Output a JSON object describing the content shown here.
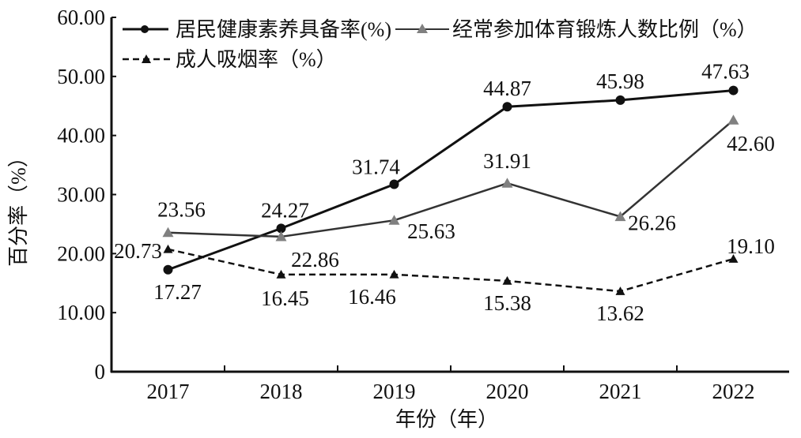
{
  "chart_data": {
    "type": "line",
    "title": "",
    "xlabel": "年份（年）",
    "ylabel": "百分率（%）",
    "categories": [
      "2017",
      "2018",
      "2019",
      "2020",
      "2021",
      "2022"
    ],
    "ylim": [
      0,
      60
    ],
    "yticks": [
      "0",
      "10.00",
      "20.00",
      "30.00",
      "40.00",
      "50.00",
      "60.00"
    ],
    "grid": false,
    "legend_placement": "top",
    "series": [
      {
        "name": "居民健康素养具备率(%)",
        "marker": "circle",
        "style": "solid",
        "color": "#111111",
        "values": [
          17.27,
          24.27,
          31.74,
          44.87,
          45.98,
          47.63
        ],
        "labels": [
          "17.27",
          "24.27",
          "31.74",
          "44.87",
          "45.98",
          "47.63"
        ]
      },
      {
        "name": "经常参加体育锻炼人数比例（%）",
        "marker": "triangle",
        "style": "solid",
        "color": "#808080",
        "values": [
          23.56,
          22.86,
          25.63,
          31.91,
          26.26,
          42.6
        ],
        "labels": [
          "23.56",
          "22.86",
          "25.63",
          "31.91",
          "26.26",
          "42.60"
        ]
      },
      {
        "name": "成人吸烟率（%）",
        "marker": "triangle",
        "style": "dashed",
        "color": "#111111",
        "values": [
          20.73,
          16.45,
          16.46,
          15.38,
          13.62,
          19.1
        ],
        "labels": [
          "20.73",
          "16.45",
          "16.46",
          "15.38",
          "13.62",
          "19.10"
        ]
      }
    ]
  }
}
